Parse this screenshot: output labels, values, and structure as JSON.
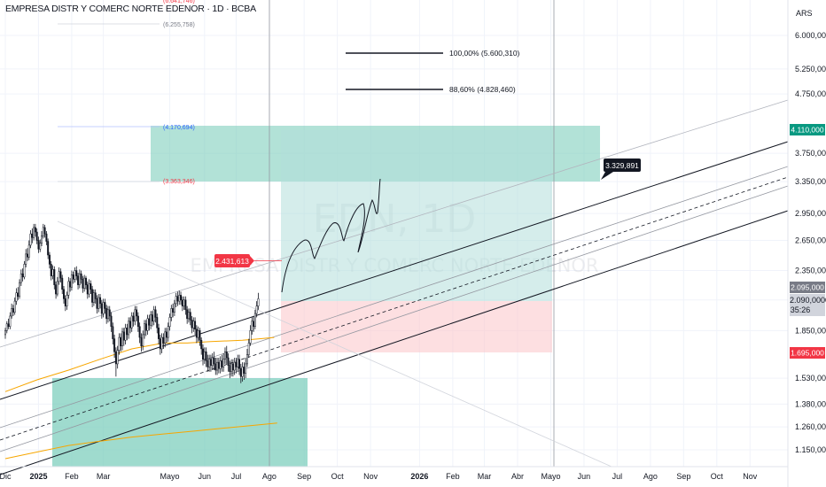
{
  "header": {
    "title": "EMPRESA DISTR Y COMERC NORTE EDENOR · 1D · BCBA",
    "currency": "ARS"
  },
  "watermark": {
    "symbol": "EDN, 1D",
    "name": "EMPRESA DISTR Y COMERC NORTE EDENOR"
  },
  "chart_data": {
    "type": "candlestick",
    "ylim": [
      1090000,
      6800000
    ],
    "y_scale": "log",
    "y_ticks": [
      {
        "v": 6000000,
        "label": "6.000,000"
      },
      {
        "v": 5250000,
        "label": "5.250,000"
      },
      {
        "v": 4750000,
        "label": "4.750,000"
      },
      {
        "v": 3750000,
        "label": "3.750,000"
      },
      {
        "v": 3350000,
        "label": "3.350,000"
      },
      {
        "v": 2950000,
        "label": "2.950,000"
      },
      {
        "v": 2650000,
        "label": "2.650,000"
      },
      {
        "v": 2350000,
        "label": "2.350,000"
      },
      {
        "v": 2090000,
        "label": "2.090,000"
      },
      {
        "v": 1850000,
        "label": "1.850,000"
      },
      {
        "v": 1530000,
        "label": "1.530,000"
      },
      {
        "v": 1380000,
        "label": "1.380,000"
      },
      {
        "v": 1260000,
        "label": "1.260,000"
      },
      {
        "v": 1150000,
        "label": "1.150,000"
      }
    ],
    "x_ticks": [
      {
        "i": 0,
        "label": "Dic",
        "bold": false
      },
      {
        "i": 21,
        "label": "2025",
        "bold": true
      },
      {
        "i": 42,
        "label": "Feb",
        "bold": false
      },
      {
        "i": 62,
        "label": "Mar",
        "bold": false
      },
      {
        "i": 104,
        "label": "Mayo",
        "bold": false
      },
      {
        "i": 126,
        "label": "Jun",
        "bold": false
      },
      {
        "i": 146,
        "label": "Jul",
        "bold": false
      },
      {
        "i": 167,
        "label": "Ago",
        "bold": false
      },
      {
        "i": 189,
        "label": "Sep",
        "bold": false
      },
      {
        "i": 210,
        "label": "Oct",
        "bold": false
      },
      {
        "i": 231,
        "label": "Nov",
        "bold": false
      },
      {
        "i": 262,
        "label": "2026",
        "bold": true
      },
      {
        "i": 283,
        "label": "Feb",
        "bold": false
      },
      {
        "i": 303,
        "label": "Mar",
        "bold": false
      },
      {
        "i": 324,
        "label": "Abr",
        "bold": false
      },
      {
        "i": 345,
        "label": "Mayo",
        "bold": false
      },
      {
        "i": 366,
        "label": "Jun",
        "bold": false
      },
      {
        "i": 387,
        "label": "Jul",
        "bold": false
      },
      {
        "i": 408,
        "label": "Ago",
        "bold": false
      },
      {
        "i": 429,
        "label": "Sep",
        "bold": false
      },
      {
        "i": 450,
        "label": "Oct",
        "bold": false
      },
      {
        "i": 471,
        "label": "Nov",
        "bold": false
      }
    ],
    "candles": [
      [
        1820000,
        1850000,
        1790000,
        1870000
      ],
      [
        1850000,
        1900000,
        1830000,
        1920000
      ],
      [
        1900000,
        1880000,
        1860000,
        1940000
      ],
      [
        1880000,
        1960000,
        1860000,
        1990000
      ],
      [
        1960000,
        2020000,
        1940000,
        2060000
      ],
      [
        2020000,
        1990000,
        1960000,
        2050000
      ],
      [
        1990000,
        2080000,
        1970000,
        2110000
      ],
      [
        2080000,
        2150000,
        2050000,
        2190000
      ],
      [
        2150000,
        2120000,
        2090000,
        2200000
      ],
      [
        2120000,
        2240000,
        2100000,
        2270000
      ],
      [
        2240000,
        2320000,
        2210000,
        2360000
      ],
      [
        2320000,
        2290000,
        2250000,
        2370000
      ],
      [
        2290000,
        2410000,
        2270000,
        2440000
      ],
      [
        2410000,
        2510000,
        2380000,
        2560000
      ],
      [
        2510000,
        2480000,
        2440000,
        2570000
      ],
      [
        2480000,
        2600000,
        2450000,
        2650000
      ],
      [
        2600000,
        2720000,
        2570000,
        2760000
      ],
      [
        2720000,
        2680000,
        2620000,
        2780000
      ],
      [
        2680000,
        2790000,
        2650000,
        2830000
      ],
      [
        2790000,
        2740000,
        2690000,
        2830000
      ],
      [
        2740000,
        2650000,
        2610000,
        2780000
      ],
      [
        2650000,
        2560000,
        2520000,
        2690000
      ],
      [
        2560000,
        2620000,
        2530000,
        2660000
      ],
      [
        2620000,
        2700000,
        2590000,
        2750000
      ],
      [
        2700000,
        2790000,
        2670000,
        2830000
      ],
      [
        2790000,
        2720000,
        2680000,
        2820000
      ],
      [
        2720000,
        2640000,
        2600000,
        2750000
      ],
      [
        2640000,
        2500000,
        2460000,
        2670000
      ],
      [
        2500000,
        2410000,
        2370000,
        2530000
      ],
      [
        2410000,
        2300000,
        2260000,
        2440000
      ],
      [
        2300000,
        2360000,
        2270000,
        2400000
      ],
      [
        2360000,
        2220000,
        2180000,
        2390000
      ],
      [
        2220000,
        2140000,
        2100000,
        2250000
      ],
      [
        2140000,
        2250000,
        2120000,
        2290000
      ],
      [
        2250000,
        2340000,
        2220000,
        2380000
      ],
      [
        2340000,
        2280000,
        2240000,
        2370000
      ],
      [
        2280000,
        2180000,
        2140000,
        2310000
      ],
      [
        2180000,
        2100000,
        2060000,
        2210000
      ],
      [
        2100000,
        2040000,
        2000000,
        2130000
      ],
      [
        2040000,
        2130000,
        2010000,
        2160000
      ],
      [
        2130000,
        2250000,
        2100000,
        2290000
      ],
      [
        2250000,
        2200000,
        2160000,
        2280000
      ],
      [
        2200000,
        2310000,
        2170000,
        2350000
      ],
      [
        2310000,
        2270000,
        2230000,
        2340000
      ],
      [
        2270000,
        2350000,
        2240000,
        2380000
      ],
      [
        2350000,
        2300000,
        2260000,
        2390000
      ],
      [
        2300000,
        2220000,
        2180000,
        2330000
      ],
      [
        2220000,
        2320000,
        2190000,
        2360000
      ],
      [
        2320000,
        2270000,
        2230000,
        2350000
      ],
      [
        2270000,
        2190000,
        2150000,
        2300000
      ],
      [
        2190000,
        2280000,
        2160000,
        2310000
      ],
      [
        2280000,
        2220000,
        2180000,
        2300000
      ],
      [
        2220000,
        2140000,
        2100000,
        2250000
      ],
      [
        2140000,
        2230000,
        2110000,
        2270000
      ],
      [
        2230000,
        2180000,
        2140000,
        2260000
      ],
      [
        2180000,
        2070000,
        2030000,
        2210000
      ],
      [
        2070000,
        2150000,
        2040000,
        2180000
      ],
      [
        2150000,
        2100000,
        2060000,
        2180000
      ],
      [
        2100000,
        2020000,
        1980000,
        2130000
      ],
      [
        2020000,
        2110000,
        1990000,
        2140000
      ],
      [
        2110000,
        2060000,
        2020000,
        2140000
      ],
      [
        2060000,
        1980000,
        1940000,
        2090000
      ],
      [
        1980000,
        2070000,
        1950000,
        2100000
      ],
      [
        2070000,
        2020000,
        1980000,
        2100000
      ],
      [
        2020000,
        1940000,
        1900000,
        2050000
      ],
      [
        1940000,
        2010000,
        1910000,
        2040000
      ],
      [
        2010000,
        1960000,
        1920000,
        2040000
      ],
      [
        1960000,
        1880000,
        1840000,
        1990000
      ],
      [
        1880000,
        1790000,
        1750000,
        1910000
      ],
      [
        1790000,
        1700000,
        1660000,
        1820000
      ],
      [
        1700000,
        1620000,
        1540000,
        1730000
      ],
      [
        1620000,
        1710000,
        1590000,
        1740000
      ],
      [
        1710000,
        1800000,
        1680000,
        1830000
      ],
      [
        1800000,
        1740000,
        1700000,
        1830000
      ],
      [
        1740000,
        1840000,
        1710000,
        1870000
      ],
      [
        1840000,
        1780000,
        1740000,
        1870000
      ],
      [
        1780000,
        1870000,
        1750000,
        1900000
      ],
      [
        1870000,
        1820000,
        1780000,
        1900000
      ],
      [
        1820000,
        1920000,
        1790000,
        1950000
      ],
      [
        1920000,
        1870000,
        1830000,
        1950000
      ],
      [
        1870000,
        1960000,
        1840000,
        1990000
      ],
      [
        1960000,
        1920000,
        1880000,
        1990000
      ],
      [
        1920000,
        2010000,
        1890000,
        2040000
      ],
      [
        2010000,
        1960000,
        1920000,
        2040000
      ],
      [
        1960000,
        1880000,
        1840000,
        1990000
      ],
      [
        1880000,
        1800000,
        1760000,
        1910000
      ],
      [
        1800000,
        1740000,
        1700000,
        1830000
      ],
      [
        1740000,
        1820000,
        1710000,
        1850000
      ],
      [
        1820000,
        1900000,
        1790000,
        1930000
      ],
      [
        1900000,
        1850000,
        1810000,
        1930000
      ],
      [
        1850000,
        1940000,
        1820000,
        1970000
      ],
      [
        1940000,
        1890000,
        1850000,
        1970000
      ],
      [
        1890000,
        1970000,
        1860000,
        2000000
      ],
      [
        1970000,
        1920000,
        1880000,
        2000000
      ],
      [
        1920000,
        2010000,
        1890000,
        2040000
      ],
      [
        2010000,
        1950000,
        1910000,
        2040000
      ],
      [
        1950000,
        1870000,
        1830000,
        1980000
      ],
      [
        1870000,
        1790000,
        1750000,
        1900000
      ],
      [
        1790000,
        1720000,
        1680000,
        1820000
      ],
      [
        1720000,
        1800000,
        1690000,
        1830000
      ],
      [
        1800000,
        1760000,
        1720000,
        1830000
      ],
      [
        1760000,
        1840000,
        1730000,
        1870000
      ],
      [
        1840000,
        1800000,
        1760000,
        1870000
      ],
      [
        1800000,
        1880000,
        1770000,
        1910000
      ],
      [
        1880000,
        1950000,
        1850000,
        1980000
      ],
      [
        1950000,
        2020000,
        1920000,
        2050000
      ],
      [
        2020000,
        1990000,
        1950000,
        2060000
      ],
      [
        1990000,
        2060000,
        1960000,
        2090000
      ],
      [
        2060000,
        2120000,
        2030000,
        2150000
      ],
      [
        2120000,
        2080000,
        2040000,
        2160000
      ],
      [
        2080000,
        2130000,
        2050000,
        2170000
      ],
      [
        2130000,
        2090000,
        2050000,
        2160000
      ],
      [
        2090000,
        2040000,
        2000000,
        2120000
      ],
      [
        2040000,
        2090000,
        2010000,
        2120000
      ],
      [
        2090000,
        2010000,
        1970000,
        2120000
      ],
      [
        2010000,
        1940000,
        1900000,
        2040000
      ],
      [
        1940000,
        1990000,
        1910000,
        2020000
      ],
      [
        1990000,
        1930000,
        1890000,
        2020000
      ],
      [
        1930000,
        1870000,
        1830000,
        1960000
      ],
      [
        1870000,
        1920000,
        1840000,
        1950000
      ],
      [
        1920000,
        1860000,
        1820000,
        1950000
      ],
      [
        1860000,
        1800000,
        1760000,
        1890000
      ],
      [
        1800000,
        1850000,
        1770000,
        1880000
      ],
      [
        1850000,
        1780000,
        1740000,
        1870000
      ],
      [
        1780000,
        1720000,
        1680000,
        1800000
      ],
      [
        1720000,
        1650000,
        1610000,
        1750000
      ],
      [
        1650000,
        1700000,
        1620000,
        1730000
      ],
      [
        1700000,
        1640000,
        1600000,
        1730000
      ],
      [
        1640000,
        1600000,
        1570000,
        1680000
      ],
      [
        1600000,
        1650000,
        1570000,
        1680000
      ],
      [
        1650000,
        1610000,
        1570000,
        1680000
      ],
      [
        1610000,
        1660000,
        1580000,
        1690000
      ],
      [
        1660000,
        1620000,
        1580000,
        1700000
      ],
      [
        1620000,
        1580000,
        1550000,
        1660000
      ],
      [
        1580000,
        1630000,
        1550000,
        1660000
      ],
      [
        1630000,
        1590000,
        1560000,
        1660000
      ],
      [
        1590000,
        1640000,
        1560000,
        1670000
      ],
      [
        1640000,
        1600000,
        1570000,
        1680000
      ],
      [
        1600000,
        1650000,
        1570000,
        1690000
      ],
      [
        1650000,
        1700000,
        1620000,
        1730000
      ],
      [
        1700000,
        1660000,
        1620000,
        1740000
      ],
      [
        1660000,
        1610000,
        1570000,
        1690000
      ],
      [
        1610000,
        1570000,
        1530000,
        1640000
      ],
      [
        1570000,
        1620000,
        1540000,
        1650000
      ],
      [
        1620000,
        1580000,
        1540000,
        1650000
      ],
      [
        1580000,
        1630000,
        1550000,
        1660000
      ],
      [
        1630000,
        1600000,
        1560000,
        1660000
      ],
      [
        1600000,
        1650000,
        1570000,
        1680000
      ],
      [
        1650000,
        1590000,
        1550000,
        1680000
      ],
      [
        1590000,
        1540000,
        1500000,
        1620000
      ],
      [
        1540000,
        1600000,
        1510000,
        1630000
      ],
      [
        1600000,
        1560000,
        1520000,
        1630000
      ],
      [
        1560000,
        1620000,
        1530000,
        1660000
      ],
      [
        1620000,
        1680000,
        1600000,
        1720000
      ],
      [
        1680000,
        1760000,
        1660000,
        1790000
      ],
      [
        1760000,
        1850000,
        1740000,
        1890000
      ],
      [
        1850000,
        1920000,
        1820000,
        1950000
      ],
      [
        1920000,
        1880000,
        1840000,
        1960000
      ],
      [
        1880000,
        1980000,
        1860000,
        2010000
      ],
      [
        1980000,
        2040000,
        1950000,
        2080000
      ],
      [
        2040000,
        2100000,
        2010000,
        2150000
      ]
    ],
    "ma_fast": [
      [
        0,
        1450000
      ],
      [
        20,
        1520000
      ],
      [
        40,
        1580000
      ],
      [
        60,
        1650000
      ],
      [
        80,
        1720000
      ],
      [
        100,
        1760000
      ],
      [
        115,
        1760000
      ],
      [
        130,
        1770000
      ],
      [
        150,
        1780000
      ],
      [
        160,
        1790000
      ],
      [
        170,
        1800000
      ]
    ],
    "ma_slow": [
      [
        0,
        1110000
      ],
      [
        20,
        1140000
      ],
      [
        40,
        1170000
      ],
      [
        60,
        1190000
      ],
      [
        80,
        1210000
      ],
      [
        100,
        1225000
      ],
      [
        120,
        1240000
      ],
      [
        140,
        1255000
      ],
      [
        160,
        1270000
      ],
      [
        172,
        1280000
      ]
    ],
    "last_price_label": "2.095,000",
    "last_close_label": "2.090,000",
    "countdown_label": "35:26",
    "target_label": "4.110,000",
    "stop_label": "1.695,000",
    "badge_left_label": "2.431,613",
    "badge_right_label": "3.329,891",
    "fib_levels": [
      {
        "label": "100,00% (5.600,310)"
      },
      {
        "label": "88,60% (4.828,460)"
      }
    ],
    "range_labels": [
      {
        "label": "(6.641,746)",
        "color": "#f23645"
      },
      {
        "label": "(6.255,758)",
        "color": "#787b86"
      },
      {
        "label": "(4.170,694)",
        "color": "#2962ff"
      },
      {
        "label": "(3.363,346)",
        "color": "#f23645"
      }
    ]
  }
}
